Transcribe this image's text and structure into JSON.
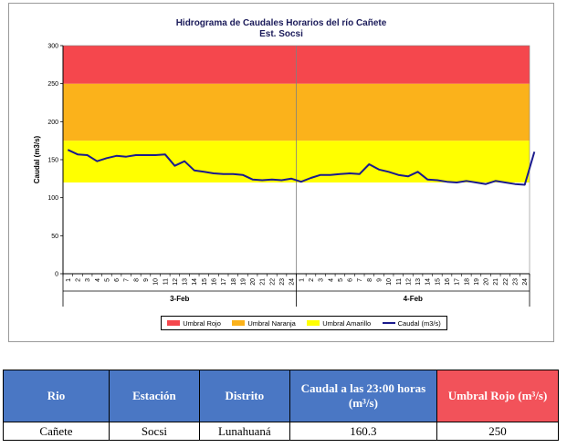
{
  "chart_data": {
    "type": "line",
    "title": "Hidrograma de Caudales Horarios del río Cañete",
    "subtitle": "Est. Socsi",
    "ylabel": "Caudal  (m3/s)",
    "ylim": [
      0,
      300
    ],
    "yticks": [
      "0",
      "50",
      "100",
      "150",
      "200",
      "250",
      "300"
    ],
    "hours": [
      "1",
      "2",
      "3",
      "4",
      "5",
      "6",
      "7",
      "8",
      "9",
      "10",
      "11",
      "12",
      "13",
      "14",
      "15",
      "16",
      "17",
      "18",
      "19",
      "20",
      "21",
      "22",
      "23",
      "24"
    ],
    "days": [
      "3-Feb",
      "4-Feb"
    ],
    "thresholds": {
      "amarillo": [
        120,
        175
      ],
      "naranja": [
        175,
        250
      ],
      "rojo": [
        250,
        300
      ]
    },
    "colors": {
      "rojo": "#f5474d",
      "naranja": "#fbb21b",
      "amarillo": "#ffff00",
      "caudal": "#1a1a8c"
    },
    "series": [
      {
        "name": "Caudal (m3/s)",
        "values": [
          163,
          157,
          156,
          148,
          152,
          155,
          154,
          156,
          156,
          156,
          157,
          142,
          148,
          136,
          134,
          132,
          131,
          131,
          130,
          124,
          123,
          124,
          123,
          125,
          121,
          126,
          130,
          130,
          131,
          132,
          131,
          144,
          137,
          134,
          130,
          128,
          134,
          124,
          123,
          121,
          120,
          122,
          120,
          118,
          122,
          120,
          118,
          117,
          160.3
        ]
      }
    ],
    "legend": [
      "Umbral Rojo",
      "Umbral Naranja",
      "Umbral Amarillo",
      "Caudal (m3/s)"
    ]
  },
  "table": {
    "headers": [
      "Rio",
      "Estación",
      "Distrito",
      "Caudal a las 23:00 horas (m³/s)",
      "Umbral Rojo (m³/s)"
    ],
    "row": [
      "Cañete",
      "Socsi",
      "Lunahuaná",
      "160.3",
      "250"
    ]
  }
}
